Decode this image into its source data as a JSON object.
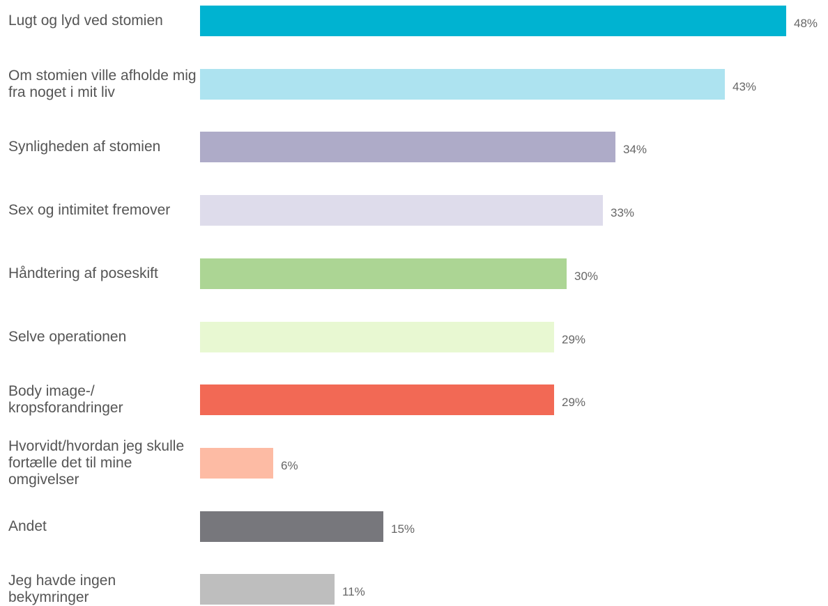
{
  "chart_data": {
    "type": "bar",
    "orientation": "horizontal",
    "title": "",
    "xlabel": "",
    "ylabel": "",
    "xlim": [
      0,
      48
    ],
    "grid": false,
    "legend": "none",
    "categories": [
      "Lugt og lyd ved stomien",
      "Om stomien ville afholde mig fra noget i mit liv",
      "Synligheden af stomien",
      "Sex og intimitet fremover",
      "Håndtering af poseskift",
      "Selve operationen",
      "Body image-/ kropsforandringer",
      "Hvorvidt/hvordan jeg skulle fortælle det til mine omgivelser",
      "Andet",
      "Jeg havde ingen bekymringer"
    ],
    "values": [
      48,
      43,
      34,
      33,
      30,
      29,
      29,
      6,
      15,
      11
    ],
    "value_labels": [
      "48%",
      "43%",
      "34%",
      "33%",
      "30%",
      "29%",
      "29%",
      "6%",
      "15%",
      "11%"
    ],
    "colors": [
      "#00b3d1",
      "#ade3f0",
      "#aeabc8",
      "#dedceb",
      "#acd594",
      "#e8f8d2",
      "#f26955",
      "#fdbba4",
      "#77777c",
      "#bebebe"
    ]
  }
}
